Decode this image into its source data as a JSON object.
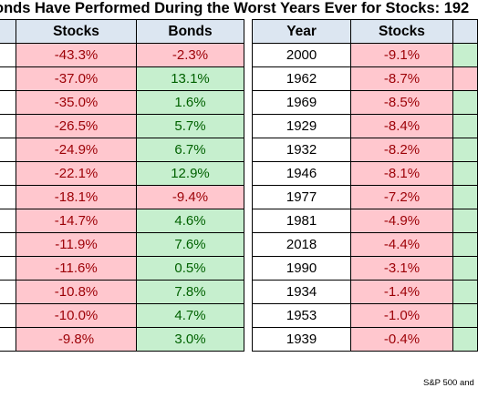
{
  "title": "onds Have Performed During the Worst Years Ever for Stocks: 192",
  "left_table": {
    "headers": [
      "",
      "Stocks",
      "Bonds"
    ],
    "rows": [
      [
        "",
        "-43.3%",
        "-2.3%"
      ],
      [
        "",
        "-37.0%",
        "13.1%"
      ],
      [
        "",
        "-35.0%",
        "1.6%"
      ],
      [
        "",
        "-26.5%",
        "5.7%"
      ],
      [
        "",
        "-24.9%",
        "6.7%"
      ],
      [
        "",
        "-22.1%",
        "12.9%"
      ],
      [
        "",
        "-18.1%",
        "-9.4%"
      ],
      [
        "",
        "-14.7%",
        "4.6%"
      ],
      [
        "",
        "-11.9%",
        "7.6%"
      ],
      [
        "",
        "-11.6%",
        "0.5%"
      ],
      [
        "",
        "-10.8%",
        "7.8%"
      ],
      [
        "",
        "-10.0%",
        "4.7%"
      ],
      [
        "",
        "-9.8%",
        "3.0%"
      ]
    ]
  },
  "right_table": {
    "headers": [
      "Year",
      "Stocks",
      ""
    ],
    "rows": [
      [
        "2000",
        "-9.1%",
        ""
      ],
      [
        "1962",
        "-8.7%",
        ""
      ],
      [
        "1969",
        "-8.5%",
        ""
      ],
      [
        "1929",
        "-8.4%",
        ""
      ],
      [
        "1932",
        "-8.2%",
        ""
      ],
      [
        "1946",
        "-8.1%",
        ""
      ],
      [
        "1977",
        "-7.2%",
        ""
      ],
      [
        "1981",
        "-4.9%",
        ""
      ],
      [
        "2018",
        "-4.4%",
        ""
      ],
      [
        "1990",
        "-3.1%",
        ""
      ],
      [
        "1934",
        "-1.4%",
        ""
      ],
      [
        "1953",
        "-1.0%",
        ""
      ],
      [
        "1939",
        "-0.4%",
        ""
      ]
    ],
    "clipped_column_colors": [
      "pos",
      "neg",
      "pos",
      "pos",
      "pos",
      "pos",
      "pos",
      "pos",
      "pos",
      "pos",
      "pos",
      "pos",
      "pos"
    ]
  },
  "source_note": "S&P 500 and",
  "colors": {
    "header_bg": "#dce6f1",
    "negative_bg": "#ffc7ce",
    "negative_text": "#9c0006",
    "positive_bg": "#c6efce",
    "positive_text": "#006100"
  }
}
